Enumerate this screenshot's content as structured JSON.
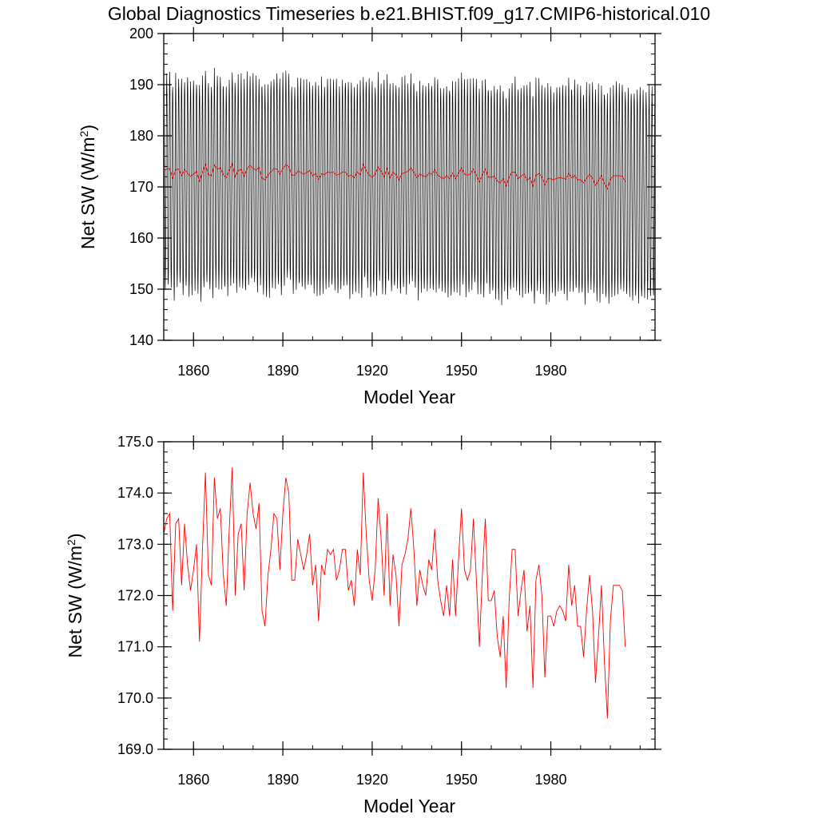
{
  "title": "Global Diagnostics Timeseries b.e21.BHIST.f09_g17.CMIP6-historical.010",
  "colors": {
    "monthly": "#000000",
    "annual": "#ff0000",
    "frame": "#000000"
  },
  "chart_data": [
    {
      "type": "line",
      "panel": "top",
      "xlabel": "Model Year",
      "ylabel": "Net SW (W/m²)",
      "ylabel_parts": {
        "main": "Net SW (W/m",
        "sup": "2",
        "close": ")"
      },
      "xlim": [
        1850,
        2015
      ],
      "ylim": [
        140,
        200
      ],
      "xticks": [
        1860,
        1890,
        1920,
        1950,
        1980
      ],
      "xtick_labels": [
        "1860",
        "1890",
        "1920",
        "1950",
        "1980"
      ],
      "yticks": [
        140,
        150,
        160,
        170,
        180,
        190,
        200
      ],
      "ytick_labels": [
        "140",
        "150",
        "160",
        "170",
        "180",
        "190",
        "200"
      ],
      "series": [
        {
          "name": "monthly",
          "color": "#000000",
          "seasonal_cycle": {
            "mean": 169.5,
            "amplitude": 20.5,
            "period_years": 1,
            "peak_month": 1
          }
        },
        {
          "name": "annual_mean",
          "color": "#ff0000",
          "source": "annual_values"
        }
      ]
    },
    {
      "type": "line",
      "panel": "bottom",
      "xlabel": "Model Year",
      "ylabel": "Net SW (W/m²)",
      "ylabel_parts": {
        "main": "Net SW (W/m",
        "sup": "2",
        "close": ")"
      },
      "xlim": [
        1850,
        2015
      ],
      "ylim": [
        169.0,
        175.0
      ],
      "xticks": [
        1860,
        1890,
        1920,
        1950,
        1980
      ],
      "xtick_labels": [
        "1860",
        "1890",
        "1920",
        "1950",
        "1980"
      ],
      "yticks": [
        169,
        170,
        171,
        172,
        173,
        174,
        175
      ],
      "ytick_labels": [
        "169.0",
        "170.0",
        "171.0",
        "172.0",
        "173.0",
        "174.0",
        "175.0"
      ],
      "series": [
        {
          "name": "annual_mean",
          "color": "#ff0000",
          "x_start": 1850,
          "x_step": 1,
          "values": [
            173.2,
            173.5,
            173.6,
            171.7,
            173.4,
            173.5,
            172.2,
            173.4,
            172.6,
            172.1,
            172.5,
            173.0,
            171.1,
            172.9,
            174.4,
            172.4,
            172.2,
            174.3,
            173.5,
            173.7,
            172.4,
            171.8,
            173.3,
            174.5,
            172.0,
            173.2,
            173.4,
            172.1,
            173.6,
            174.2,
            173.6,
            173.3,
            173.8,
            171.7,
            171.4,
            172.4,
            172.9,
            173.6,
            173.5,
            172.5,
            173.6,
            174.3,
            174.0,
            172.3,
            172.3,
            173.1,
            172.8,
            172.5,
            172.8,
            173.2,
            172.2,
            172.6,
            171.5,
            172.6,
            172.4,
            172.9,
            172.8,
            172.9,
            172.3,
            172.5,
            172.9,
            172.9,
            172.1,
            172.3,
            171.8,
            172.9,
            172.4,
            174.4,
            173.2,
            172.3,
            171.9,
            172.5,
            173.9,
            173.1,
            172.0,
            173.6,
            171.8,
            172.8,
            172.4,
            171.4,
            172.6,
            172.8,
            173.1,
            173.7,
            172.9,
            171.8,
            172.5,
            172.2,
            172.0,
            172.7,
            172.5,
            173.3,
            172.3,
            171.9,
            171.6,
            172.2,
            171.6,
            172.7,
            171.6,
            172.7,
            173.7,
            172.5,
            172.3,
            172.5,
            173.5,
            172.3,
            171.0,
            172.4,
            173.5,
            171.9,
            171.9,
            172.1,
            171.2,
            170.8,
            171.6,
            170.2,
            171.9,
            172.9,
            172.9,
            171.6,
            172.1,
            172.5,
            171.3,
            171.8,
            170.2,
            172.3,
            172.6,
            172.0,
            170.4,
            171.6,
            171.6,
            171.4,
            171.7,
            171.8,
            171.7,
            171.5,
            172.6,
            171.8,
            172.2,
            171.4,
            171.4,
            170.8,
            171.7,
            172.4,
            171.7,
            170.3,
            171.2,
            172.2,
            170.7,
            169.6,
            171.5,
            172.2,
            172.2,
            172.2,
            172.1,
            171.0
          ]
        }
      ]
    }
  ]
}
